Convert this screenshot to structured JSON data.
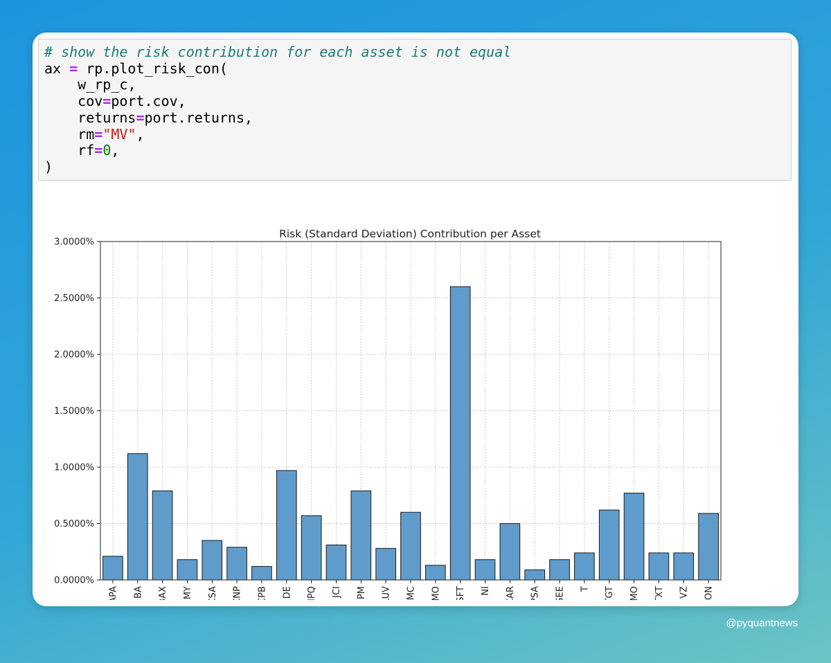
{
  "code": {
    "comment": "# show the risk contribution for each asset is not equal",
    "line_call": [
      "ax ",
      "=",
      " rp.plot_risk_con("
    ],
    "arg1": "w_rp_c,",
    "arg2": [
      "cov",
      "=",
      "port.cov,"
    ],
    "arg3": [
      "returns",
      "=",
      "port.returns,"
    ],
    "arg4": [
      "rm",
      "=",
      "\"MV\"",
      ","
    ],
    "arg5": [
      "rf",
      "=",
      "0",
      ","
    ],
    "close": ")"
  },
  "watermark": "@pyquantnews",
  "colors": {
    "bar_fill": "#5f9ccc",
    "bar_edge": "#1a1a1a",
    "grid": "#c8c8c8"
  },
  "chart_data": {
    "type": "bar",
    "title": "Risk (Standard Deviation) Contribution per Asset",
    "xlabel": "",
    "ylabel": "",
    "ylim": [
      0,
      3.0
    ],
    "y_ticks": [
      0,
      0.5,
      1.0,
      1.5,
      2.0,
      2.5,
      3.0
    ],
    "y_tick_labels": [
      "0.0000%",
      "0.5000%",
      "1.0000%",
      "1.5000%",
      "2.0000%",
      "2.5000%",
      "3.0000%"
    ],
    "grid": true,
    "categories": [
      "APA",
      "BA",
      "BAX",
      "BMY",
      "CMCSA",
      "CNP",
      "CPB",
      "DE",
      "HPQ",
      "JCI",
      "JPM",
      "LUV",
      "MMC",
      "MO",
      "MSFT",
      "NI",
      "PCAR",
      "PSA",
      "SEE",
      "T",
      "TGT",
      "TMO",
      "TXT",
      "VZ",
      "ZION"
    ],
    "values": [
      0.21,
      1.12,
      0.79,
      0.18,
      0.35,
      0.29,
      0.12,
      0.97,
      0.57,
      0.31,
      0.79,
      0.28,
      0.6,
      0.13,
      2.6,
      0.18,
      0.5,
      0.09,
      0.18,
      0.24,
      0.62,
      0.77,
      0.24,
      0.24,
      0.59
    ]
  }
}
